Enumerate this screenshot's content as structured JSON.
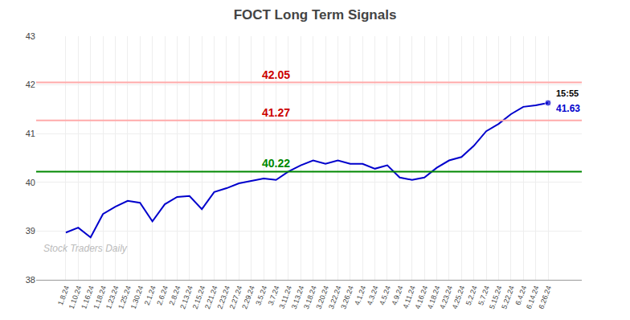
{
  "chart_data": {
    "type": "line",
    "title": "FOCT Long Term Signals",
    "categories": [
      "1.8.24",
      "1.10.24",
      "1.16.24",
      "1.18.24",
      "1.23.24",
      "1.25.24",
      "1.30.24",
      "2.1.24",
      "2.6.24",
      "2.8.24",
      "2.13.24",
      "2.15.24",
      "2.21.24",
      "2.23.24",
      "2.27.24",
      "2.29.24",
      "3.5.24",
      "3.7.24",
      "3.11.24",
      "3.13.24",
      "3.18.24",
      "3.20.24",
      "3.22.24",
      "3.26.24",
      "4.1.24",
      "4.3.24",
      "4.5.24",
      "4.9.24",
      "4.11.24",
      "4.16.24",
      "4.18.24",
      "4.23.24",
      "4.25.24",
      "5.2.24",
      "5.7.24",
      "5.15.24",
      "5.22.24",
      "6.4.24",
      "6.14.24",
      "6.26.24"
    ],
    "values": [
      38.97,
      39.07,
      38.87,
      39.35,
      39.5,
      39.62,
      39.58,
      39.2,
      39.55,
      39.7,
      39.72,
      39.45,
      39.8,
      39.88,
      39.98,
      40.03,
      40.08,
      40.05,
      40.22,
      40.35,
      40.45,
      40.38,
      40.45,
      40.38,
      40.38,
      40.28,
      40.35,
      40.1,
      40.05,
      40.1,
      40.3,
      40.45,
      40.52,
      40.75,
      41.05,
      41.2,
      41.4,
      41.55,
      41.58,
      41.63
    ],
    "color": "#0000cc",
    "ylim": [
      38,
      43
    ],
    "yticks": [
      38,
      39,
      40,
      41,
      42,
      43
    ],
    "grid": true,
    "hlines": [
      {
        "value": 40.22,
        "label": "40.22",
        "color": "#008800",
        "label_color": "#008800"
      },
      {
        "value": 42.05,
        "label": "42.05",
        "color": "#ffaaaa",
        "label_color": "#cc0000"
      },
      {
        "value": 41.27,
        "label": "41.27",
        "color": "#ffaaaa",
        "label_color": "#cc0000"
      }
    ],
    "end_labels": [
      "15:55",
      "41.63"
    ],
    "watermark": {
      "text": "Stock Traders Daily",
      "color": "#bbbbbb"
    }
  }
}
